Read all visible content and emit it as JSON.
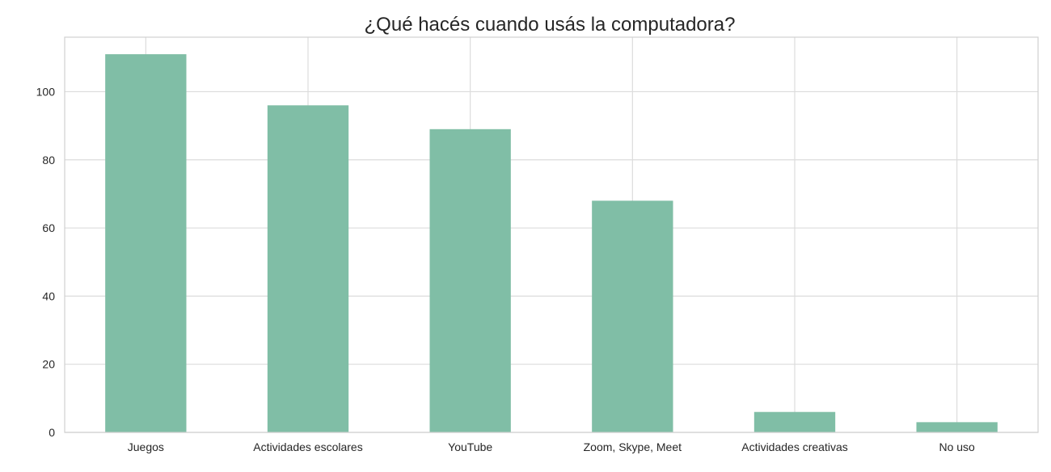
{
  "chart_data": {
    "type": "bar",
    "title": "¿Qué hacés cuando usás la computadora?",
    "xlabel": "",
    "ylabel": "",
    "categories": [
      "Juegos",
      "Actividades escolares",
      "YouTube",
      "Zoom, Skype, Meet",
      "Actividades creativas",
      "No uso"
    ],
    "values": [
      111,
      96,
      89,
      68,
      6,
      3
    ],
    "ylim": [
      0,
      116
    ],
    "yticks": [
      0,
      20,
      40,
      60,
      80,
      100
    ],
    "grid": true,
    "bar_color": "#80bea6",
    "grid_color": "#dcdcdc"
  }
}
